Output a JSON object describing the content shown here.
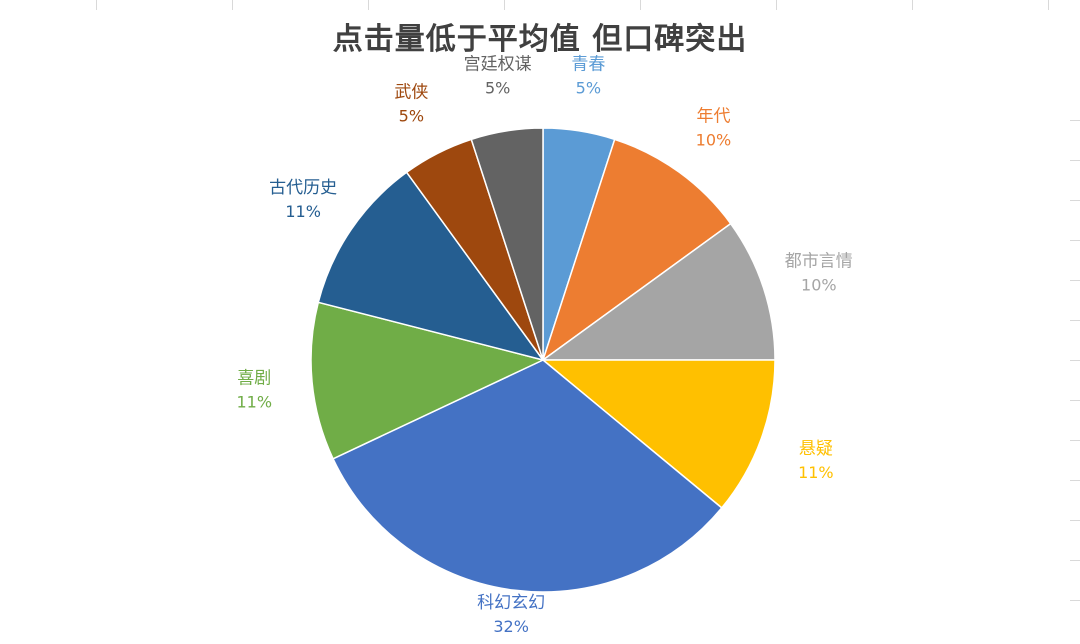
{
  "title": "点击量低于平均值  但口碑突出",
  "chart_data": {
    "type": "pie",
    "title": "点击量低于平均值  但口碑突出",
    "start_angle_deg": 0,
    "slices": [
      {
        "name": "青春",
        "value": 5,
        "label": "5%",
        "color": "#5B9BD5"
      },
      {
        "name": "年代",
        "value": 10,
        "label": "10%",
        "color": "#ED7D31"
      },
      {
        "name": "都市言情",
        "value": 10,
        "label": "10%",
        "color": "#A5A5A5"
      },
      {
        "name": "悬疑",
        "value": 11,
        "label": "11%",
        "color": "#FFC000"
      },
      {
        "name": "科幻玄幻",
        "value": 32,
        "label": "32%",
        "color": "#4472C4"
      },
      {
        "name": "喜剧",
        "value": 11,
        "label": "11%",
        "color": "#70AD47"
      },
      {
        "name": "古代历史",
        "value": 11,
        "label": "11%",
        "color": "#255E91"
      },
      {
        "name": "武侠",
        "value": 5,
        "label": "5%",
        "color": "#9E480E"
      },
      {
        "name": "宫廷权谋",
        "value": 5,
        "label": "5%",
        "color": "#636363"
      }
    ]
  }
}
